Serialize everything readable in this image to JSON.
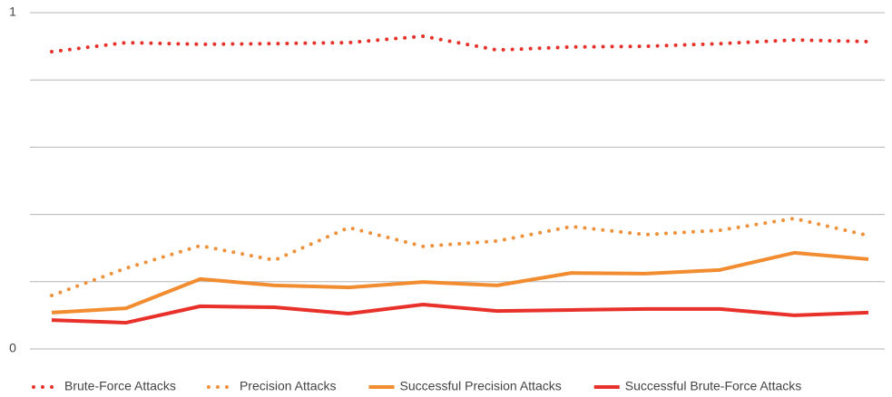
{
  "chart_data": {
    "type": "line",
    "categories": [
      null,
      null,
      null,
      null,
      null,
      null,
      null,
      null,
      null,
      null,
      null,
      null
    ],
    "ylim": [
      0,
      1
    ],
    "yticks": [
      0,
      {
        "value": 0.2,
        "label": null
      },
      {
        "value": 0.4,
        "label": null
      },
      {
        "value": 0.6,
        "label": null
      },
      {
        "value": 0.8,
        "label": null
      },
      1
    ],
    "grid": true,
    "legend": "bottom",
    "series": [
      {
        "name": "Brute-Force Attacks",
        "color": "#e8312a",
        "style": "dotted",
        "values": [
          0.884,
          0.911,
          0.906,
          0.908,
          0.911,
          0.93,
          0.889,
          0.898,
          0.9,
          0.908,
          0.919,
          0.914
        ]
      },
      {
        "name": "Precision Attacks",
        "color": "#f0913a",
        "style": "dotted",
        "values": [
          0.159,
          0.24,
          0.307,
          0.264,
          0.361,
          0.305,
          0.321,
          0.364,
          0.34,
          0.353,
          0.388,
          0.337
        ]
      },
      {
        "name": "Successful Precision Attacks",
        "color": "#f28c30",
        "style": "solid",
        "values": [
          0.108,
          0.121,
          0.208,
          0.189,
          0.183,
          0.199,
          0.189,
          0.226,
          0.224,
          0.235,
          0.286,
          0.267
        ]
      },
      {
        "name": "Successful Brute-Force Attacks",
        "color": "#e8312a",
        "style": "solid",
        "values": [
          0.086,
          0.078,
          0.127,
          0.124,
          0.105,
          0.132,
          0.113,
          0.116,
          0.119,
          0.119,
          0.1,
          0.108
        ]
      }
    ]
  }
}
